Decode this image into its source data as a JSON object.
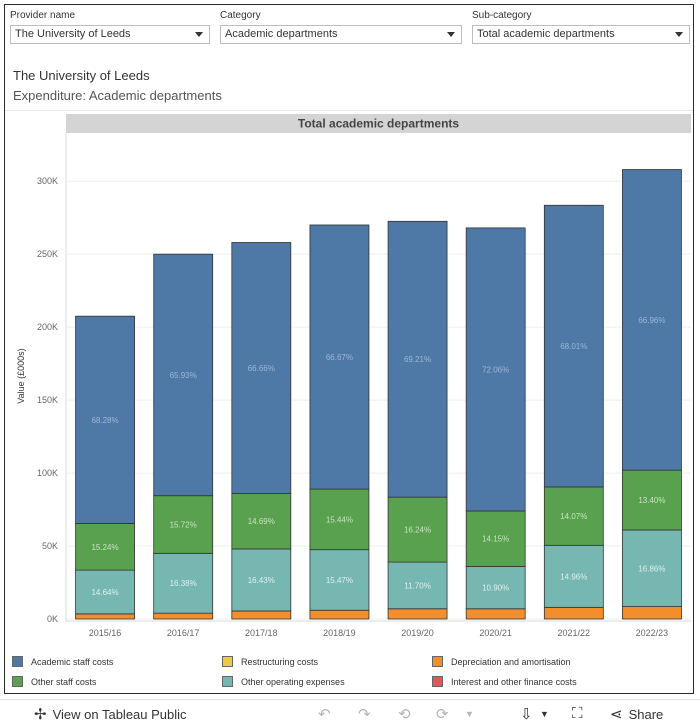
{
  "filters": [
    {
      "label": "Provider name",
      "value": "The University of Leeds"
    },
    {
      "label": "Category",
      "value": "Academic departments"
    },
    {
      "label": "Sub-category",
      "value": "Total academic departments"
    }
  ],
  "titles": {
    "line1": "The University of Leeds",
    "line2": "Expenditure: Academic departments"
  },
  "chart_data": {
    "type": "bar",
    "stacked": true,
    "panel_header": "Total academic departments",
    "ylabel": "Value (£000s)",
    "xlabel": "",
    "ylim": [
      0,
      320000
    ],
    "yticks": [
      0,
      50000,
      100000,
      150000,
      200000,
      250000,
      300000
    ],
    "ytick_labels": [
      "0K",
      "50K",
      "100K",
      "150K",
      "200K",
      "250K",
      "300K"
    ],
    "categories": [
      "2015/16",
      "2016/17",
      "2017/18",
      "2018/19",
      "2019/20",
      "2020/21",
      "2021/22",
      "2022/23"
    ],
    "series": [
      {
        "name": "Interest and other finance costs",
        "color": "#e15759",
        "values": [
          0,
          0,
          0,
          0,
          0,
          0,
          0,
          0
        ],
        "labels": []
      },
      {
        "name": "Depreciation and amortisation",
        "color": "#f28e2b",
        "values": [
          3500,
          4000,
          5500,
          6000,
          7000,
          7000,
          8000,
          8500
        ],
        "labels": []
      },
      {
        "name": "Restructuring costs",
        "color": "#edc948",
        "values": [
          0,
          0,
          0,
          0,
          0,
          0,
          0,
          0
        ],
        "labels": []
      },
      {
        "name": "Other operating expenses",
        "color": "#76b7b2",
        "values": [
          30000,
          41000,
          42500,
          41500,
          32000,
          29000,
          42500,
          52500
        ],
        "labels": [
          "14.64%",
          "16.38%",
          "16.43%",
          "15.47%",
          "11.70%",
          "10.90%",
          "14.96%",
          "16.86%"
        ]
      },
      {
        "name": "Other staff costs",
        "color": "#59a14f",
        "values": [
          32000,
          39500,
          38000,
          41500,
          44500,
          38000,
          40000,
          41000
        ],
        "labels": [
          "15.24%",
          "15.72%",
          "14.69%",
          "15.44%",
          "16.24%",
          "14.15%",
          "14.07%",
          "13.40%"
        ]
      },
      {
        "name": "Academic staff costs",
        "color": "#4e79a7",
        "values": [
          142000,
          165500,
          172000,
          181000,
          189000,
          194000,
          193000,
          206000
        ],
        "labels": [
          "68.28%",
          "65.93%",
          "66.66%",
          "66.67%",
          "69.21%",
          "72.06%",
          "68.01%",
          "66.96%"
        ]
      }
    ]
  },
  "legend": [
    {
      "name": "Academic staff costs",
      "color": "#4e79a7"
    },
    {
      "name": "Restructuring costs",
      "color": "#edc948"
    },
    {
      "name": "Depreciation and amortisation",
      "color": "#f28e2b"
    },
    {
      "name": "Other staff costs",
      "color": "#59a14f"
    },
    {
      "name": "Other operating expenses",
      "color": "#76b7b2"
    },
    {
      "name": "Interest and other finance costs",
      "color": "#e15759"
    }
  ],
  "toolbar": {
    "view_label": "View on Tableau Public",
    "share_label": "Share"
  }
}
